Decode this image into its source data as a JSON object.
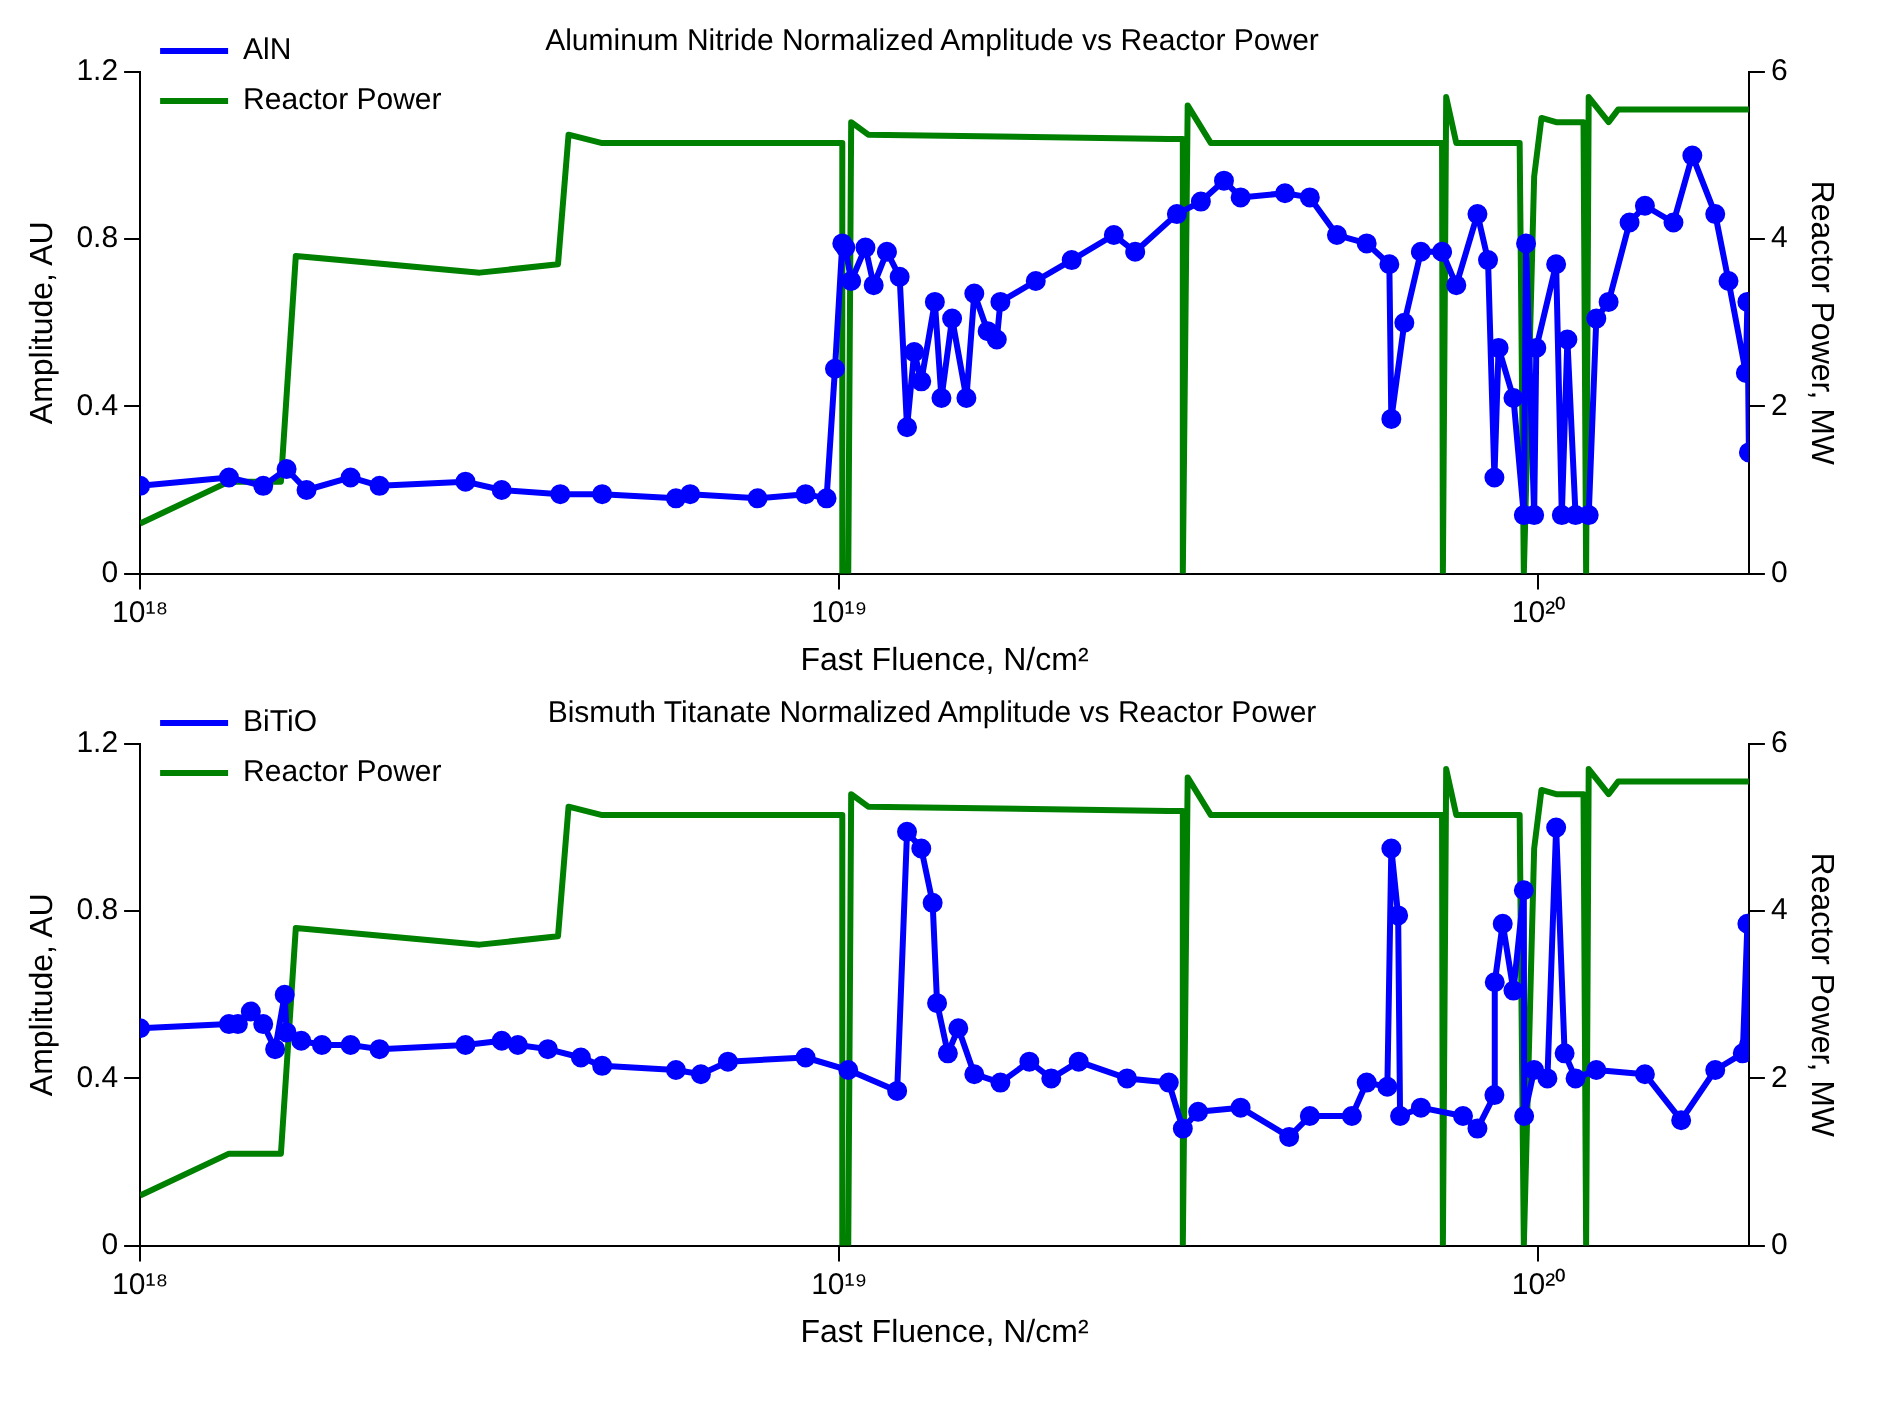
{
  "chart_data": [
    {
      "type": "line",
      "title": "Aluminum Nitride Normalized Amplitude vs Reactor Power",
      "xlabel": "Fast Fluence, N/cm²",
      "ylabel": "Amplitude, AU",
      "y2label": "Reactor Power, MW",
      "log": "x",
      "grid": false,
      "legend": "top left",
      "marker": "circle",
      "xlim": [
        1e+18,
        2e+20
      ],
      "xticks": [
        {
          "value": 1e+18,
          "label": "10¹⁸"
        },
        {
          "value": 1e+19,
          "label": "10¹⁹"
        },
        {
          "value": 1e+20,
          "label": "10²⁰"
        }
      ],
      "ylim": [
        0,
        1.2
      ],
      "yticks": [
        0,
        0.4,
        0.8,
        1.2
      ],
      "y2lim": [
        0,
        6
      ],
      "y2ticks": [
        0,
        2,
        4,
        6
      ],
      "series": [
        {
          "name": "AlN",
          "color": "#0000ff",
          "x": [
            1e+18,
            1.34e+18,
            1.5e+18,
            1.62e+18,
            1.73e+18,
            2e+18,
            2.2e+18,
            2.92e+18,
            3.29e+18,
            3.99e+18,
            4.58e+18,
            5.84e+18,
            6.12e+18,
            7.64e+18,
            8.95e+18,
            9.59e+18,
            9.86e+18,
            1.01e+19,
            1.02e+19,
            1.04e+19,
            1.09e+19,
            1.12e+19,
            1.17e+19,
            1.22e+19,
            1.25e+19,
            1.28e+19,
            1.31e+19,
            1.37e+19,
            1.4e+19,
            1.45e+19,
            1.52e+19,
            1.56e+19,
            1.63e+19,
            1.68e+19,
            1.7e+19,
            1.91e+19,
            2.15e+19,
            2.47e+19,
            2.65e+19,
            3.04e+19,
            3.29e+19,
            3.55e+19,
            3.75e+19,
            4.34e+19,
            4.71e+19,
            5.15e+19,
            5.68e+19,
            6.12e+19,
            6.16e+19,
            6.43e+19,
            6.79e+19,
            7.28e+19,
            7.63e+19,
            8.18e+19,
            8.47e+19,
            8.65e+19,
            8.77e+19,
            9.21e+19,
            9.53e+19,
            9.6e+19,
            9.86e+19,
            9.93e+19,
            1.06e+20,
            1.08e+20,
            1.1e+20,
            1.13e+20,
            1.18e+20,
            1.21e+20,
            1.26e+20,
            1.35e+20,
            1.42e+20,
            1.56e+20,
            1.66e+20,
            1.79e+20,
            1.87e+20,
            1.98e+20,
            1.99e+20,
            2e+20
          ],
          "values": [
            0.21,
            0.23,
            0.21,
            0.25,
            0.2,
            0.23,
            0.21,
            0.22,
            0.2,
            0.19,
            0.19,
            0.18,
            0.19,
            0.18,
            0.19,
            0.18,
            0.49,
            0.79,
            0.78,
            0.7,
            0.78,
            0.69,
            0.77,
            0.71,
            0.35,
            0.53,
            0.46,
            0.65,
            0.42,
            0.61,
            0.42,
            0.67,
            0.58,
            0.56,
            0.65,
            0.7,
            0.75,
            0.81,
            0.77,
            0.86,
            0.89,
            0.94,
            0.9,
            0.91,
            0.9,
            0.81,
            0.79,
            0.74,
            0.37,
            0.6,
            0.77,
            0.77,
            0.69,
            0.86,
            0.75,
            0.23,
            0.54,
            0.42,
            0.14,
            0.79,
            0.14,
            0.54,
            0.74,
            0.14,
            0.56,
            0.14,
            0.14,
            0.61,
            0.65,
            0.84,
            0.88,
            0.84,
            1.0,
            0.86,
            0.7,
            0.48,
            0.65,
            0.29
          ]
        },
        {
          "name": "Reactor Power",
          "color": "#008000",
          "axis": "y2",
          "marker": "none",
          "x": [
            1e+18,
            1.34e+18,
            1.59e+18,
            1.67e+18,
            3.06e+18,
            3.96e+18,
            4.1e+18,
            4.58e+18,
            1.01e+19,
            1.01e+19,
            1.03e+19,
            1.04e+19,
            1.1e+19,
            2.96e+19,
            3.1e+19,
            3.1e+19,
            3.15e+19,
            3.4e+19,
            7.28e+19,
            7.3e+19,
            7.38e+19,
            7.63e+19,
            9.4e+19,
            9.53e+19,
            9.86e+19,
            1.01e+20,
            1.06e+20,
            1.16e+20,
            1.17e+20,
            1.18e+20,
            1.26e+20,
            1.3e+20,
            2e+20
          ],
          "values": [
            0.6,
            1.1,
            1.1,
            3.8,
            3.6,
            3.7,
            5.25,
            5.15,
            5.15,
            0,
            0,
            5.4,
            5.25,
            5.2,
            5.2,
            0,
            5.6,
            5.15,
            5.15,
            0,
            5.7,
            5.15,
            5.15,
            0,
            4.75,
            5.45,
            5.4,
            5.4,
            0,
            5.7,
            5.4,
            5.55,
            5.55
          ]
        }
      ]
    },
    {
      "type": "line",
      "title": "Bismuth Titanate Normalized Amplitude vs Reactor Power",
      "xlabel": "Fast Fluence, N/cm²",
      "ylabel": "Amplitude, AU",
      "y2label": "Reactor Power, MW",
      "log": "x",
      "grid": false,
      "legend": "top left",
      "marker": "circle",
      "xlim": [
        1e+18,
        2e+20
      ],
      "xticks": [
        {
          "value": 1e+18,
          "label": "10¹⁸"
        },
        {
          "value": 1e+19,
          "label": "10¹⁹"
        },
        {
          "value": 1e+20,
          "label": "10²⁰"
        }
      ],
      "ylim": [
        0,
        1.2
      ],
      "yticks": [
        0,
        0.4,
        0.8,
        1.2
      ],
      "y2lim": [
        0,
        6
      ],
      "y2ticks": [
        0,
        2,
        4,
        6
      ],
      "series": [
        {
          "name": "BiTiO",
          "color": "#0000ff",
          "x": [
            1e+18,
            1.34e+18,
            1.38e+18,
            1.44e+18,
            1.5e+18,
            1.56e+18,
            1.61e+18,
            1.62e+18,
            1.7e+18,
            1.82e+18,
            2e+18,
            2.2e+18,
            2.92e+18,
            3.29e+18,
            3.47e+18,
            3.83e+18,
            4.27e+18,
            4.58e+18,
            5.84e+18,
            6.34e+18,
            6.93e+18,
            8.95e+18,
            1.03e+19,
            1.21e+19,
            1.25e+19,
            1.31e+19,
            1.36e+19,
            1.38e+19,
            1.43e+19,
            1.48e+19,
            1.56e+19,
            1.7e+19,
            1.87e+19,
            2.01e+19,
            2.2e+19,
            2.58e+19,
            2.96e+19,
            3.1e+19,
            3.26e+19,
            3.75e+19,
            4.4e+19,
            4.71e+19,
            5.41e+19,
            5.68e+19,
            6.08e+19,
            6.16e+19,
            6.3e+19,
            6.34e+19,
            6.79e+19,
            7.8e+19,
            8.18e+19,
            8.65e+19,
            8.66e+19,
            8.89e+19,
            9.21e+19,
            9.53e+19,
            9.54e+19,
            9.86e+19,
            1.03e+20,
            1.06e+20,
            1.09e+20,
            1.13e+20,
            1.21e+20,
            1.42e+20,
            1.6e+20,
            1.79e+20,
            1.96e+20,
            1.99e+20,
            2e+20
          ],
          "values": [
            0.52,
            0.53,
            0.53,
            0.56,
            0.53,
            0.47,
            0.6,
            0.51,
            0.49,
            0.48,
            0.48,
            0.47,
            0.48,
            0.49,
            0.48,
            0.47,
            0.45,
            0.43,
            0.42,
            0.41,
            0.44,
            0.45,
            0.42,
            0.37,
            0.99,
            0.95,
            0.82,
            0.58,
            0.46,
            0.52,
            0.41,
            0.39,
            0.44,
            0.4,
            0.44,
            0.4,
            0.39,
            0.28,
            0.32,
            0.33,
            0.26,
            0.31,
            0.31,
            0.39,
            0.38,
            0.95,
            0.79,
            0.31,
            0.33,
            0.31,
            0.28,
            0.36,
            0.63,
            0.77,
            0.61,
            0.85,
            0.31,
            0.42,
            0.4,
            1.0,
            0.46,
            0.4,
            0.42,
            0.41,
            0.3,
            0.42,
            0.46,
            0.77,
            0.48
          ]
        },
        {
          "name": "Reactor Power",
          "color": "#008000",
          "axis": "y2",
          "marker": "none",
          "x": [
            1e+18,
            1.34e+18,
            1.59e+18,
            1.67e+18,
            3.06e+18,
            3.96e+18,
            4.1e+18,
            4.58e+18,
            1.01e+19,
            1.01e+19,
            1.03e+19,
            1.04e+19,
            1.1e+19,
            2.96e+19,
            3.1e+19,
            3.1e+19,
            3.15e+19,
            3.4e+19,
            7.28e+19,
            7.3e+19,
            7.38e+19,
            7.63e+19,
            9.4e+19,
            9.53e+19,
            9.86e+19,
            1.01e+20,
            1.06e+20,
            1.16e+20,
            1.17e+20,
            1.18e+20,
            1.26e+20,
            1.3e+20,
            2e+20
          ],
          "values": [
            0.6,
            1.1,
            1.1,
            3.8,
            3.6,
            3.7,
            5.25,
            5.15,
            5.15,
            0,
            0,
            5.4,
            5.25,
            5.2,
            5.2,
            0,
            5.6,
            5.15,
            5.15,
            0,
            5.7,
            5.15,
            5.15,
            0,
            4.75,
            5.45,
            5.4,
            5.4,
            0,
            5.7,
            5.4,
            5.55,
            5.55
          ]
        }
      ]
    }
  ]
}
